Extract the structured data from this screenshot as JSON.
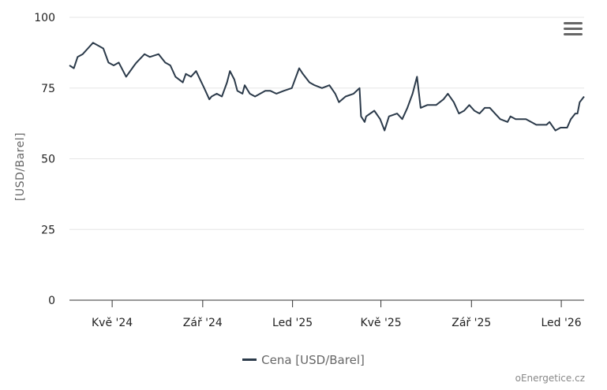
{
  "chart_data": {
    "type": "line",
    "title": "",
    "xlabel": "",
    "ylabel": "[USD/Barel]",
    "ylim": [
      0,
      100
    ],
    "yticks": [
      0,
      25,
      50,
      75,
      100
    ],
    "xlim": [
      "2024-03-04",
      "2026-02-01"
    ],
    "xticks": [
      {
        "date": "2024-05-01",
        "label": "Kvě '24"
      },
      {
        "date": "2024-09-01",
        "label": "Zář '24"
      },
      {
        "date": "2025-01-01",
        "label": "Led '25"
      },
      {
        "date": "2025-05-01",
        "label": "Kvě '25"
      },
      {
        "date": "2025-09-01",
        "label": "Zář '25"
      },
      {
        "date": "2026-01-01",
        "label": "Led '26"
      }
    ],
    "grid": true,
    "legend_position": "bottom",
    "series": [
      {
        "name": "Cena [USD/Barel]",
        "color": "#2b3a4a",
        "x": [
          "2024-03-04",
          "2024-03-10",
          "2024-03-15",
          "2024-03-22",
          "2024-03-29",
          "2024-04-05",
          "2024-04-12",
          "2024-04-19",
          "2024-04-26",
          "2024-05-03",
          "2024-05-10",
          "2024-05-20",
          "2024-05-31",
          "2024-06-03",
          "2024-06-14",
          "2024-06-21",
          "2024-07-03",
          "2024-07-12",
          "2024-07-19",
          "2024-07-26",
          "2024-08-05",
          "2024-08-09",
          "2024-08-16",
          "2024-08-23",
          "2024-09-03",
          "2024-09-10",
          "2024-09-13",
          "2024-09-20",
          "2024-09-27",
          "2024-10-04",
          "2024-10-08",
          "2024-10-14",
          "2024-10-18",
          "2024-10-25",
          "2024-10-28",
          "2024-11-04",
          "2024-11-11",
          "2024-11-18",
          "2024-11-25",
          "2024-12-02",
          "2024-12-10",
          "2024-12-20",
          "2024-12-31",
          "2025-01-10",
          "2025-01-15",
          "2025-01-24",
          "2025-01-31",
          "2025-02-10",
          "2025-02-20",
          "2025-02-28",
          "2025-03-05",
          "2025-03-14",
          "2025-03-25",
          "2025-04-02",
          "2025-04-04",
          "2025-04-09",
          "2025-04-11",
          "2025-04-22",
          "2025-04-30",
          "2025-05-06",
          "2025-05-12",
          "2025-05-23",
          "2025-05-30",
          "2025-06-06",
          "2025-06-13",
          "2025-06-19",
          "2025-06-24",
          "2025-07-03",
          "2025-07-15",
          "2025-07-25",
          "2025-07-31",
          "2025-08-08",
          "2025-08-15",
          "2025-08-22",
          "2025-08-29",
          "2025-09-05",
          "2025-09-12",
          "2025-09-19",
          "2025-09-26",
          "2025-10-03",
          "2025-10-10",
          "2025-10-20",
          "2025-10-24",
          "2025-10-31",
          "2025-11-07",
          "2025-11-14",
          "2025-11-21",
          "2025-11-28",
          "2025-12-05",
          "2025-12-12",
          "2025-12-16",
          "2025-12-24",
          "2025-12-31",
          "2026-01-09",
          "2026-01-14",
          "2026-01-20",
          "2026-01-23",
          "2026-01-26",
          "2026-02-01"
        ],
        "values": [
          83,
          82,
          86,
          87,
          89,
          91,
          90,
          89,
          84,
          83,
          84,
          79,
          83,
          84,
          87,
          86,
          87,
          84,
          83,
          79,
          77,
          80,
          79,
          81,
          75,
          71,
          72,
          73,
          72,
          77,
          81,
          78,
          74,
          73,
          76,
          73,
          72,
          73,
          74,
          74,
          73,
          74,
          75,
          82,
          80,
          77,
          76,
          75,
          76,
          73,
          70,
          72,
          73,
          75,
          65,
          63,
          65,
          67,
          64,
          60,
          65,
          66,
          64,
          68,
          73,
          79,
          68,
          69,
          69,
          71,
          73,
          70,
          66,
          67,
          69,
          67,
          66,
          68,
          68,
          66,
          64,
          63,
          65,
          64,
          64,
          64,
          63,
          62,
          62,
          62,
          63,
          60,
          61,
          61,
          64,
          66,
          66,
          70,
          72
        ]
      }
    ]
  },
  "legend": {
    "label": "Cena [USD/Barel]"
  },
  "credits": "oEnergetice.cz",
  "menu": {
    "icon": "hamburger-menu-icon"
  }
}
